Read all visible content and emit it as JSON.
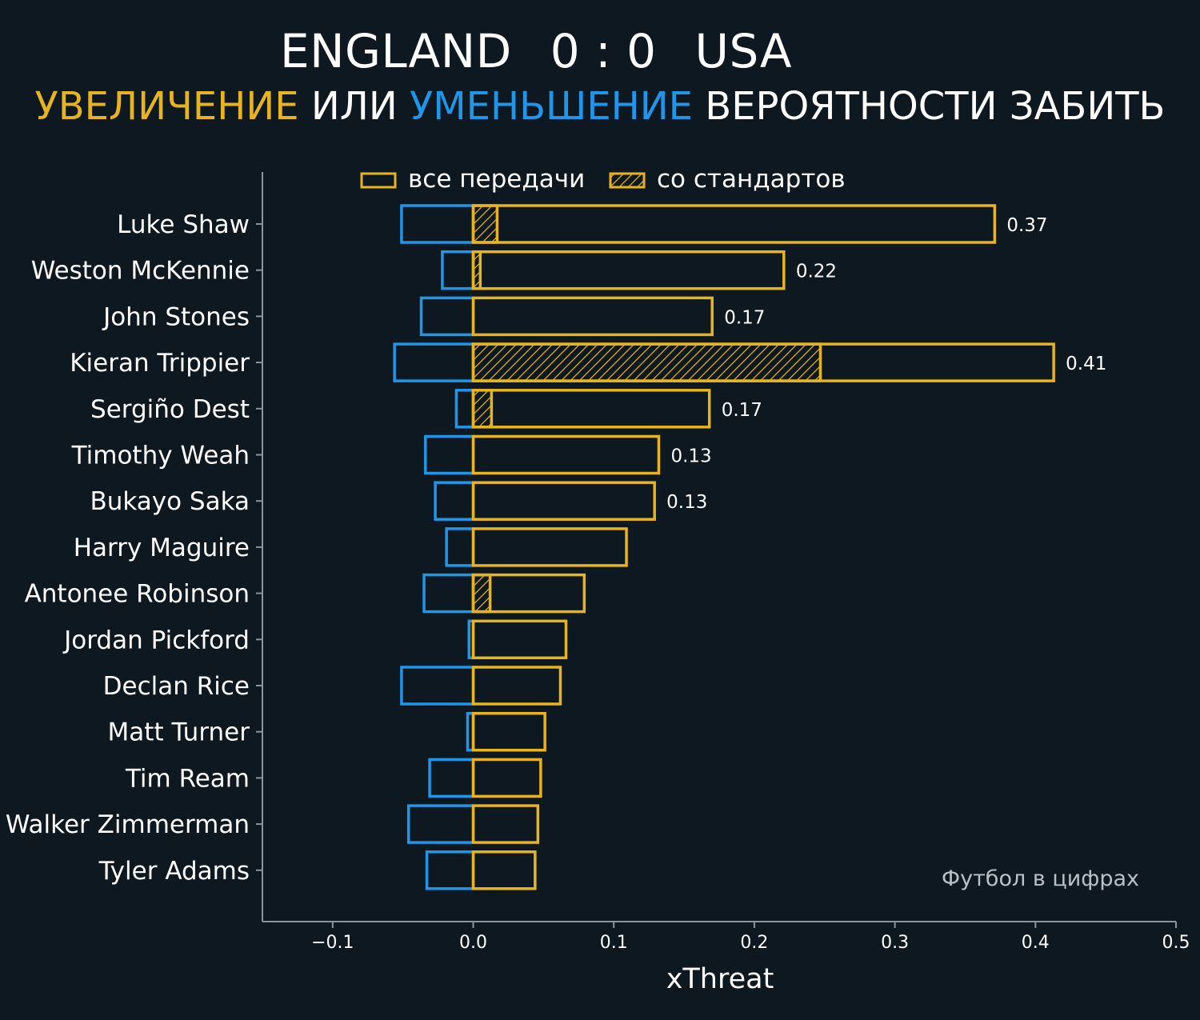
{
  "title": {
    "home": "ENGLAND",
    "score": "0 : 0",
    "away": "USA"
  },
  "subtitle": {
    "part1": "УВЕЛИЧЕНИЕ",
    "part2": " ИЛИ ",
    "part3": "УМЕНЬШЕНИЕ",
    "part4": " ВЕРОЯТНОСТИ ЗАБИТЬ"
  },
  "colors": {
    "background": "#0e1821",
    "positive": "#e6b420",
    "negative": "#2196e8",
    "axis": "#8a959e"
  },
  "legend": {
    "all_passes": "все передачи",
    "set_pieces": "со стандартов"
  },
  "credit": "Футбол в цифрах",
  "chart_data": {
    "type": "bar",
    "orientation": "horizontal",
    "xlabel": "xThreat",
    "xlim": [
      -0.15,
      0.5
    ],
    "xticks": [
      -0.1,
      0.0,
      0.1,
      0.2,
      0.3,
      0.4,
      0.5
    ],
    "xtick_labels": [
      "−0.1",
      "0.0",
      "0.1",
      "0.2",
      "0.3",
      "0.4",
      "0.5"
    ],
    "legend_position": "top",
    "categories": [
      "Luke Shaw",
      "Weston McKennie",
      "John Stones",
      "Kieran Trippier",
      "Sergiño Dest",
      "Timothy Weah",
      "Bukayo Saka",
      "Harry Maguire",
      "Antonee Robinson",
      "Jordan Pickford",
      "Declan Rice",
      "Matt Turner",
      "Tim Ream",
      "Walker Zimmerman",
      "Tyler Adams"
    ],
    "series": [
      {
        "name": "все передачи",
        "values": [
          0.371,
          0.221,
          0.17,
          0.413,
          0.168,
          0.132,
          0.129,
          0.109,
          0.079,
          0.066,
          0.062,
          0.051,
          0.048,
          0.046,
          0.044
        ]
      },
      {
        "name": "со стандартов",
        "values": [
          0.017,
          0.005,
          0,
          0.247,
          0.013,
          0,
          0,
          0,
          0.012,
          0,
          0,
          0,
          0,
          0,
          0
        ]
      },
      {
        "values": [
          -0.051,
          -0.022,
          -0.037,
          -0.056,
          -0.012,
          -0.034,
          -0.027,
          -0.019,
          -0.035,
          -0.003,
          -0.051,
          -0.004,
          -0.031,
          -0.046,
          -0.033
        ]
      }
    ],
    "value_labels": [
      "0.37",
      "0.22",
      "0.17",
      "0.41",
      "0.17",
      "0.13",
      "0.13",
      "",
      "",
      "",
      "",
      "",
      "",
      "",
      ""
    ]
  }
}
